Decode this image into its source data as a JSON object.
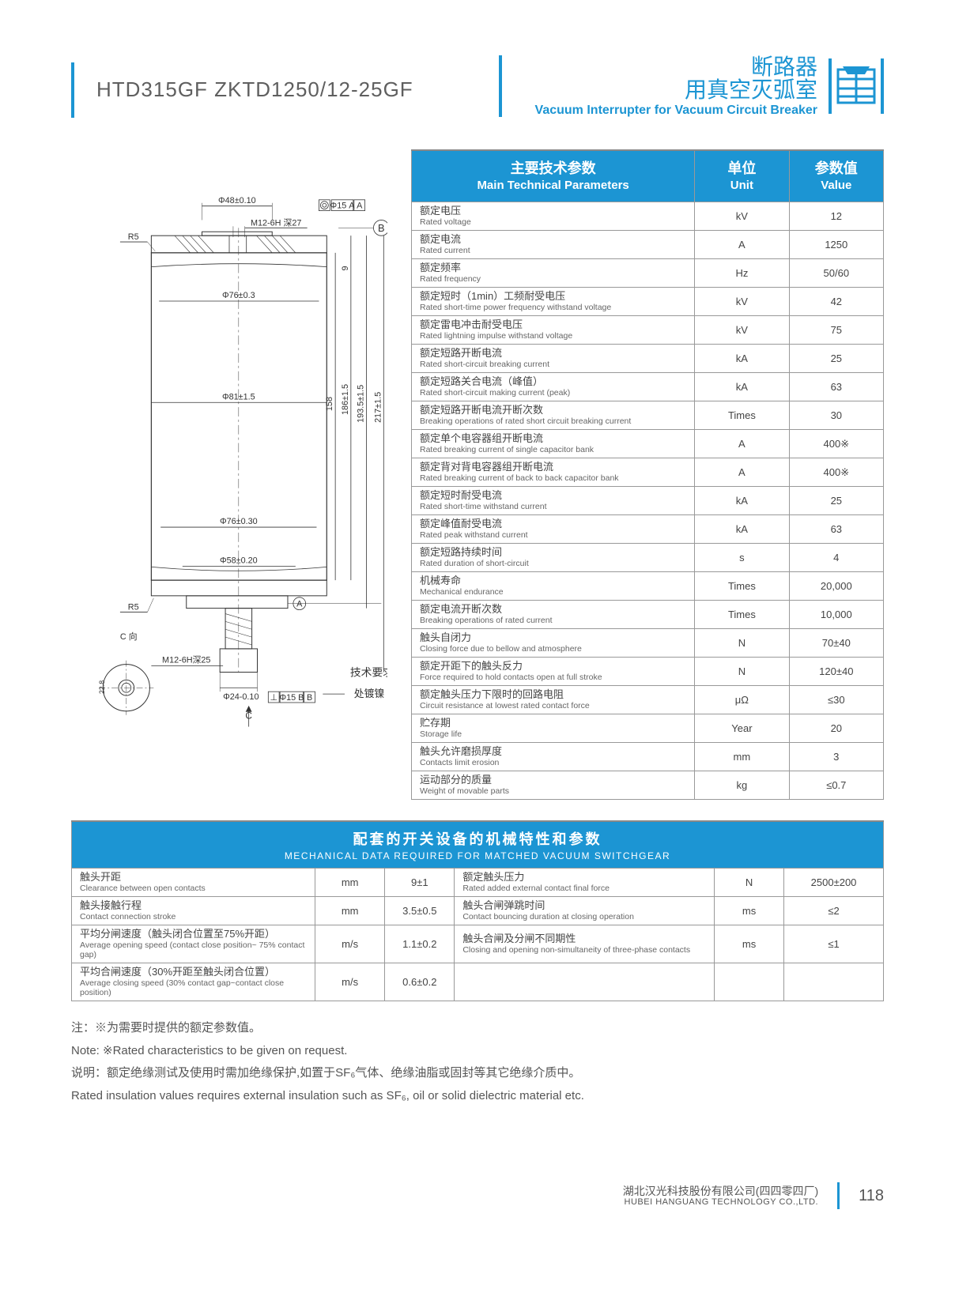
{
  "header": {
    "product_code": "HTD315GF  ZKTD1250/12-25GF",
    "title_cn_line1": "断路器",
    "title_cn_line2": "用真空灭弧室",
    "title_en": "Vacuum Interrupter for Vacuum Circuit Breaker"
  },
  "colors": {
    "accent": "#1c95d3",
    "border": "#999999",
    "text": "#4a4a4a"
  },
  "drawing": {
    "labels": {
      "d48": "Φ48±0.10",
      "d15a": "Φ15  A",
      "m12_27": "M12-6H 深27",
      "r5_top": "R5",
      "b_mark": "B",
      "d76_top": "Φ76±0.3",
      "d81": "Φ81±1.5",
      "h186": "186±1.5",
      "h158": "158",
      "h1935": "193.5±1.5",
      "h217": "217±1.5",
      "h9": "9",
      "d76_bot": "Φ76±0.30",
      "d58": "Φ58±0.20",
      "r5_bot": "R5",
      "a_mark": "A",
      "c_side": "C 向",
      "m12_25": "M12-6H深25",
      "d24": "Φ24-0.10",
      "d15b": "Φ15  B",
      "tech_req": "技术要求:",
      "nickel": "处镀镍",
      "c_arrow": "C",
      "d228": "22.8"
    }
  },
  "spec_table": {
    "header": {
      "param_cn": "主要技术参数",
      "param_en": "Main Technical Parameters",
      "unit_cn": "单位",
      "unit_en": "Unit",
      "value_cn": "参数值",
      "value_en": "Value"
    },
    "rows": [
      {
        "cn": "额定电压",
        "en": "Rated voltage",
        "unit": "kV",
        "value": "12"
      },
      {
        "cn": "额定电流",
        "en": "Rated current",
        "unit": "A",
        "value": "1250"
      },
      {
        "cn": "额定频率",
        "en": "Rated frequency",
        "unit": "Hz",
        "value": "50/60"
      },
      {
        "cn": "额定短时（1min）工频耐受电压",
        "en": "Rated short-time power frequency withstand voltage",
        "unit": "kV",
        "value": "42"
      },
      {
        "cn": "额定雷电冲击耐受电压",
        "en": "Rated lightning impulse withstand voltage",
        "unit": "kV",
        "value": "75"
      },
      {
        "cn": "额定短路开断电流",
        "en": "Rated short-circuit breaking current",
        "unit": "kA",
        "value": "25"
      },
      {
        "cn": "额定短路关合电流（峰值）",
        "en": "Rated short-circuit making current (peak)",
        "unit": "kA",
        "value": "63"
      },
      {
        "cn": "额定短路开断电流开断次数",
        "en": "Breaking operations of rated short circuit breaking current",
        "unit": "Times",
        "value": "30"
      },
      {
        "cn": "额定单个电容器组开断电流",
        "en": "Rated breaking current of single capacitor bank",
        "unit": "A",
        "value": "400※"
      },
      {
        "cn": "额定背对背电容器组开断电流",
        "en": "Rated breaking current of back to back capacitor bank",
        "unit": "A",
        "value": "400※"
      },
      {
        "cn": "额定短时耐受电流",
        "en": "Rated short-time withstand current",
        "unit": "kA",
        "value": "25"
      },
      {
        "cn": "额定峰值耐受电流",
        "en": "Rated peak withstand current",
        "unit": "kA",
        "value": "63"
      },
      {
        "cn": "额定短路持续时间",
        "en": "Rated duration of short-circuit",
        "unit": "s",
        "value": "4"
      },
      {
        "cn": "机械寿命",
        "en": "Mechanical endurance",
        "unit": "Times",
        "value": "20,000"
      },
      {
        "cn": "额定电流开断次数",
        "en": "Breaking operations of rated current",
        "unit": "Times",
        "value": "10,000"
      },
      {
        "cn": "触头自闭力",
        "en": "Closing force due to bellow and atmosphere",
        "unit": "N",
        "value": "70±40"
      },
      {
        "cn": "额定开距下的触头反力",
        "en": "Force required to hold contacts open at full stroke",
        "unit": "N",
        "value": "120±40"
      },
      {
        "cn": "额定触头压力下限时的回路电阻",
        "en": "Circuit resistance at lowest rated contact force",
        "unit": "μΩ",
        "value": "≤30"
      },
      {
        "cn": "贮存期",
        "en": "Storage life",
        "unit": "Year",
        "value": "20"
      },
      {
        "cn": "触头允许磨损厚度",
        "en": "Contacts limit erosion",
        "unit": "mm",
        "value": "3"
      },
      {
        "cn": "运动部分的质量",
        "en": "Weight of movable parts",
        "unit": "kg",
        "value": "≤0.7"
      }
    ]
  },
  "mech_table": {
    "header": {
      "cn": "配套的开关设备的机械特性和参数",
      "en": "MECHANICAL DATA REQUIRED FOR MATCHED VACUUM SWITCHGEAR"
    },
    "left_rows": [
      {
        "cn": "触头开距",
        "en": "Clearance between open contacts",
        "unit": "mm",
        "value": "9±1"
      },
      {
        "cn": "触头接触行程",
        "en": "Contact connection stroke",
        "unit": "mm",
        "value": "3.5±0.5"
      },
      {
        "cn": "平均分闸速度（触头闭合位置至75%开距）",
        "en": "Average opening speed (contact close position~ 75% contact gap)",
        "unit": "m/s",
        "value": "1.1±0.2"
      },
      {
        "cn": "平均合闸速度（30%开距至触头闭合位置）",
        "en": "Average closing speed (30% contact gap~contact close position)",
        "unit": "m/s",
        "value": "0.6±0.2"
      }
    ],
    "right_rows": [
      {
        "cn": "额定触头压力",
        "en": "Rated added external contact final force",
        "unit": "N",
        "value": "2500±200"
      },
      {
        "cn": "触头合闸弹跳时间",
        "en": "Contact bouncing duration at closing operation",
        "unit": "ms",
        "value": "≤2"
      },
      {
        "cn": "触头合闸及分闸不同期性",
        "en": "Closing and opening non-simultaneity of three-phase contacts",
        "unit": "ms",
        "value": "≤1"
      },
      {
        "cn": "",
        "en": "",
        "unit": "",
        "value": ""
      }
    ]
  },
  "notes": {
    "note1_cn": "注：※为需要时提供的额定参数值。",
    "note1_en": "Note: ※Rated characteristics to be given on request.",
    "note2_cn": "说明：额定绝缘测试及使用时需加绝缘保护,如置于SF₆气体、绝缘油脂或固封等其它绝缘介质中。",
    "note2_en": "Rated insulation values requires external insulation such as SF₆, oil or solid dielectric material etc."
  },
  "footer": {
    "company_cn": "湖北汉光科技股份有限公司(四四零四厂)",
    "company_en": "HUBEI HANGUANG TECHNOLOGY CO.,LTD.",
    "page": "118"
  }
}
